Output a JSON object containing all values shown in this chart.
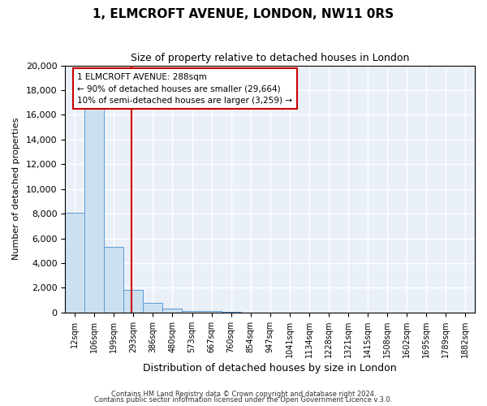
{
  "title": "1, ELMCROFT AVENUE, LONDON, NW11 0RS",
  "subtitle": "Size of property relative to detached houses in London",
  "xlabel": "Distribution of detached houses by size in London",
  "ylabel": "Number of detached properties",
  "bar_values": [
    8100,
    16600,
    5300,
    1800,
    750,
    300,
    150,
    100,
    60,
    0,
    0,
    0,
    0,
    0,
    0,
    0,
    0,
    0,
    0,
    0,
    0
  ],
  "bar_labels": [
    "12sqm",
    "106sqm",
    "199sqm",
    "293sqm",
    "386sqm",
    "480sqm",
    "573sqm",
    "667sqm",
    "760sqm",
    "854sqm",
    "947sqm",
    "1041sqm",
    "1134sqm",
    "1228sqm",
    "1321sqm",
    "1415sqm",
    "1508sqm",
    "1602sqm",
    "1695sqm",
    "1789sqm",
    "1882sqm"
  ],
  "bar_color": "#cce0f0",
  "bar_edge_color": "#5b9bd5",
  "vline_color": "#cc0000",
  "vline_pos": 2.88,
  "annotation_line1": "1 ELMCROFT AVENUE: 288sqm",
  "annotation_line2": "← 90% of detached houses are smaller (29,664)",
  "annotation_line3": "10% of semi-detached houses are larger (3,259) →",
  "annotation_box_color": "#cc0000",
  "ylim": [
    0,
    20000
  ],
  "yticks": [
    0,
    2000,
    4000,
    6000,
    8000,
    10000,
    12000,
    14000,
    16000,
    18000,
    20000
  ],
  "bg_color": "#eaf0f8",
  "footer1": "Contains HM Land Registry data © Crown copyright and database right 2024.",
  "footer2": "Contains public sector information licensed under the Open Government Licence v.3.0.",
  "grid_color": "#ffffff",
  "fig_bg": "#ffffff"
}
